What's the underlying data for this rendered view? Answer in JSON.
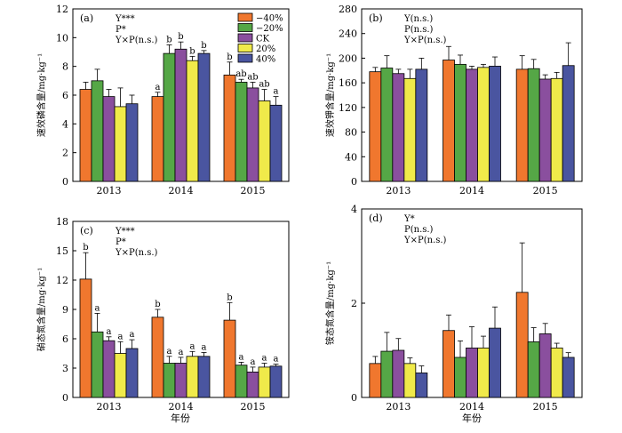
{
  "figure": {
    "xlabel_bottom": "年份",
    "legend": {
      "entries": [
        "−40%",
        "−20%",
        "CK",
        "20%",
        "40%"
      ],
      "colors": [
        "#f0772e",
        "#55a746",
        "#8a4f9e",
        "#f0ea4a",
        "#4a55a0"
      ]
    }
  },
  "chart_data": [
    {
      "type": "bar",
      "panel": "(a)",
      "ylabel": "速效磷含量/mg·kg⁻¹",
      "ylim": [
        0,
        12
      ],
      "yticks": [
        0,
        2,
        4,
        6,
        8,
        10,
        12
      ],
      "categories": [
        "2013",
        "2014",
        "2015"
      ],
      "stats": [
        "Y***",
        "P*",
        "Y×P(n.s.)"
      ],
      "series": [
        {
          "name": "−40%",
          "values": [
            6.4,
            5.9,
            7.4
          ],
          "errors": [
            0.5,
            0.3,
            0.9
          ],
          "letters": [
            "",
            "a",
            "b"
          ]
        },
        {
          "name": "−20%",
          "values": [
            7.0,
            8.9,
            6.9
          ],
          "errors": [
            0.8,
            0.6,
            0.2
          ],
          "letters": [
            "",
            "b",
            "ab"
          ]
        },
        {
          "name": "CK",
          "values": [
            5.9,
            9.2,
            6.5
          ],
          "errors": [
            0.5,
            0.5,
            0.4
          ],
          "letters": [
            "",
            "b",
            "ab"
          ]
        },
        {
          "name": "20%",
          "values": [
            5.2,
            8.4,
            5.6
          ],
          "errors": [
            1.3,
            0.3,
            0.8
          ],
          "letters": [
            "",
            "b",
            "ab"
          ]
        },
        {
          "name": "40%",
          "values": [
            5.4,
            8.9,
            5.3
          ],
          "errors": [
            0.6,
            0.2,
            0.6
          ],
          "letters": [
            "",
            "b",
            "a"
          ]
        }
      ]
    },
    {
      "type": "bar",
      "panel": "(b)",
      "ylabel": "速效钾含量/mg·kg⁻¹",
      "ylim": [
        0,
        280
      ],
      "yticks": [
        0,
        40,
        80,
        120,
        160,
        200,
        240,
        280
      ],
      "categories": [
        "2013",
        "2014",
        "2015"
      ],
      "stats": [
        "Y(n.s.)",
        "P(n.s.)",
        "Y×P(n.s.)"
      ],
      "series": [
        {
          "name": "−40%",
          "values": [
            178,
            197,
            182
          ],
          "errors": [
            7,
            22,
            22
          ],
          "letters": [
            "",
            "",
            ""
          ]
        },
        {
          "name": "−20%",
          "values": [
            184,
            190,
            183
          ],
          "errors": [
            20,
            15,
            15
          ],
          "letters": [
            "",
            "",
            ""
          ]
        },
        {
          "name": "CK",
          "values": [
            175,
            182,
            166
          ],
          "errors": [
            7,
            5,
            7
          ],
          "letters": [
            "",
            "",
            ""
          ]
        },
        {
          "name": "20%",
          "values": [
            167,
            185,
            167
          ],
          "errors": [
            15,
            5,
            10
          ],
          "letters": [
            "",
            "",
            ""
          ]
        },
        {
          "name": "40%",
          "values": [
            182,
            187,
            188
          ],
          "errors": [
            18,
            15,
            37
          ],
          "letters": [
            "",
            "",
            ""
          ]
        }
      ]
    },
    {
      "type": "bar",
      "panel": "(c)",
      "ylabel": "硝态氮含量/mg·kg⁻¹",
      "ylim": [
        0,
        18
      ],
      "yticks": [
        0,
        3,
        6,
        9,
        12,
        15,
        18
      ],
      "categories": [
        "2013",
        "2014",
        "2015"
      ],
      "stats": [
        "Y***",
        "P*",
        "Y×P(n.s.)"
      ],
      "series": [
        {
          "name": "−40%",
          "values": [
            12.1,
            8.2,
            7.9
          ],
          "errors": [
            2.7,
            0.8,
            1.8
          ],
          "letters": [
            "b",
            "b",
            "b"
          ]
        },
        {
          "name": "−20%",
          "values": [
            6.7,
            3.5,
            3.3
          ],
          "errors": [
            1.9,
            0.7,
            0.3
          ],
          "letters": [
            "a",
            "a",
            "a"
          ]
        },
        {
          "name": "CK",
          "values": [
            5.8,
            3.5,
            2.6
          ],
          "errors": [
            0.4,
            0.6,
            0.5
          ],
          "letters": [
            "a",
            "a",
            "a"
          ]
        },
        {
          "name": "20%",
          "values": [
            4.5,
            4.2,
            3.1
          ],
          "errors": [
            1.2,
            0.5,
            0.4
          ],
          "letters": [
            "a",
            "a",
            "a"
          ]
        },
        {
          "name": "40%",
          "values": [
            5.0,
            4.2,
            3.2
          ],
          "errors": [
            0.9,
            0.4,
            0.2
          ],
          "letters": [
            "a",
            "a",
            "a"
          ]
        }
      ]
    },
    {
      "type": "bar",
      "panel": "(d)",
      "ylabel": "铵态氮含量/mg·kg⁻¹",
      "ylim": [
        0,
        4
      ],
      "yticks": [
        0,
        2,
        4
      ],
      "categories": [
        "2013",
        "2014",
        "2015"
      ],
      "stats": [
        "Y*",
        "P(n.s.)",
        "Y×P(n.s.)"
      ],
      "series": [
        {
          "name": "−40%",
          "values": [
            0.72,
            1.42,
            2.23
          ],
          "errors": [
            0.15,
            0.33,
            1.05
          ],
          "letters": [
            "",
            "",
            ""
          ]
        },
        {
          "name": "−20%",
          "values": [
            0.98,
            0.85,
            1.18
          ],
          "errors": [
            0.4,
            0.35,
            0.3
          ],
          "letters": [
            "",
            "",
            ""
          ]
        },
        {
          "name": "CK",
          "values": [
            1.0,
            1.05,
            1.35
          ],
          "errors": [
            0.25,
            0.45,
            0.22
          ],
          "letters": [
            "",
            "",
            ""
          ]
        },
        {
          "name": "20%",
          "values": [
            0.72,
            1.05,
            1.05
          ],
          "errors": [
            0.12,
            0.25,
            0.1
          ],
          "letters": [
            "",
            "",
            ""
          ]
        },
        {
          "name": "40%",
          "values": [
            0.52,
            1.47,
            0.85
          ],
          "errors": [
            0.15,
            0.45,
            0.1
          ],
          "letters": [
            "",
            "",
            ""
          ]
        }
      ]
    }
  ]
}
